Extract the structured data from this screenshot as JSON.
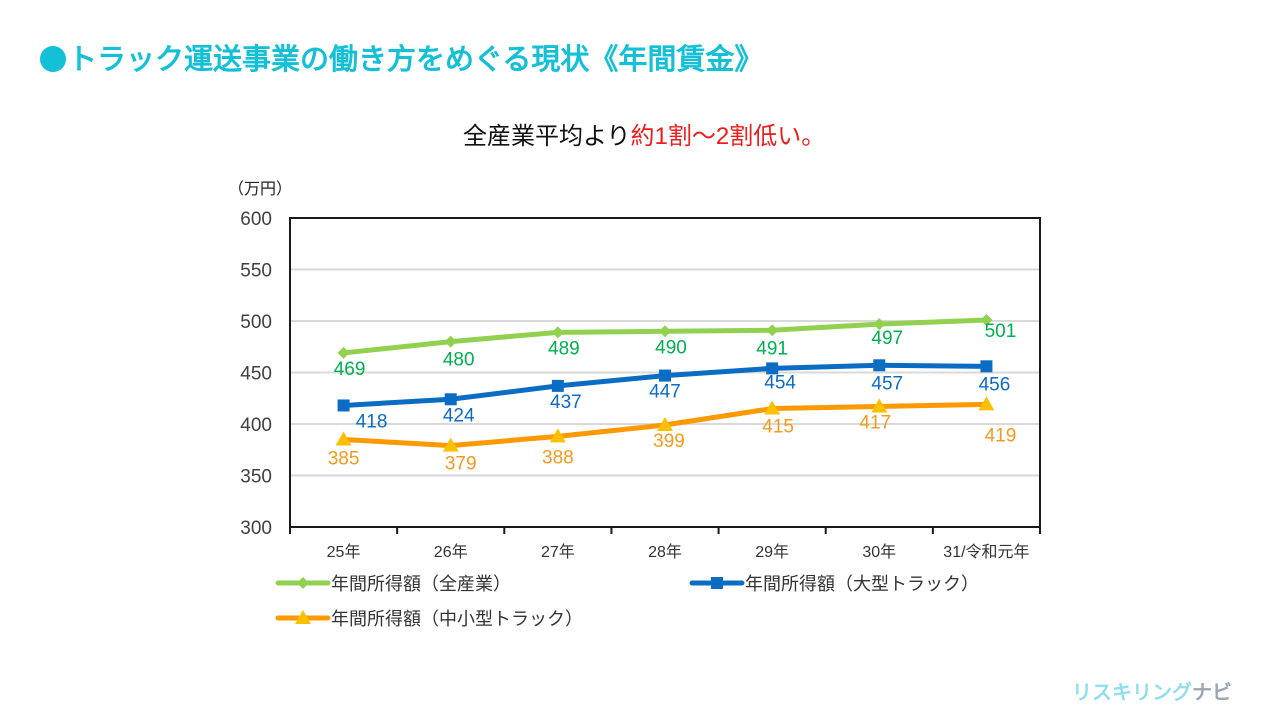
{
  "header": {
    "title": "トラック運送事業の働き方をめぐる現状《年間賃金》",
    "subtitle_plain": "全産業平均より",
    "subtitle_highlight": "約1割～2割低い。"
  },
  "branding": {
    "logo_part1": "リスキリング",
    "logo_part2": "ナビ"
  },
  "colors": {
    "title": "#14c0d6",
    "highlight": "#ee1c1c",
    "all_industry_line": "#92d050",
    "all_industry_label": "#00b050",
    "large_truck": "#0b6cc4",
    "small_truck_line": "#ff9900",
    "small_truck_marker": "#ffc000",
    "small_truck_label": "#f59a1b"
  },
  "chart_data": {
    "type": "line",
    "title": "",
    "ylabel": "（万円）",
    "xlabel": "",
    "ylim": [
      300,
      600
    ],
    "yticks": [
      300,
      350,
      400,
      450,
      500,
      550,
      600
    ],
    "grid": true,
    "legend_placement": "bottom",
    "categories": [
      "25年",
      "26年",
      "27年",
      "28年",
      "29年",
      "30年",
      "31/令和元年"
    ],
    "series": [
      {
        "name": "年間所得額（全産業）",
        "marker": "diamond",
        "values": [
          469,
          480,
          489,
          490,
          491,
          497,
          501
        ]
      },
      {
        "name": "年間所得額（大型トラック）",
        "marker": "square",
        "values": [
          418,
          424,
          437,
          447,
          454,
          457,
          456
        ]
      },
      {
        "name": "年間所得額（中小型トラック）",
        "marker": "triangle",
        "values": [
          385,
          379,
          388,
          399,
          415,
          417,
          419
        ]
      }
    ]
  }
}
